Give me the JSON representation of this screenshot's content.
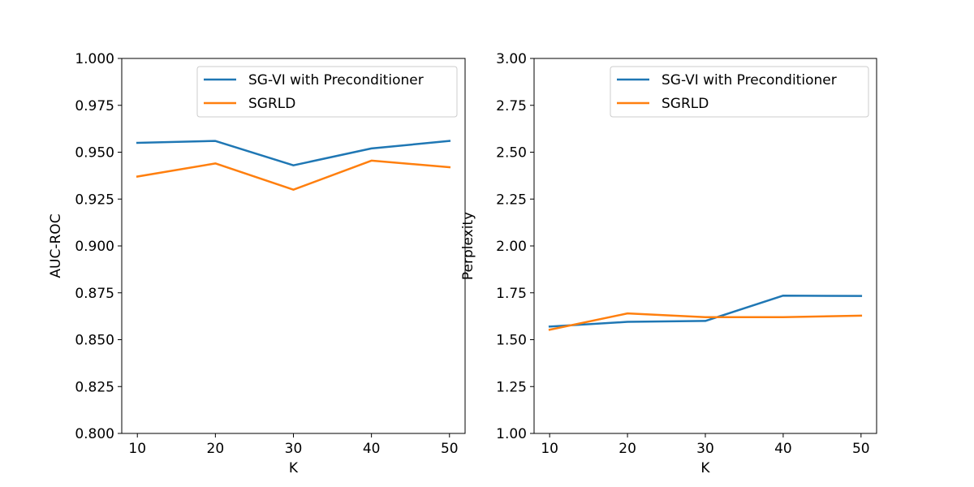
{
  "chart_data": [
    {
      "type": "line",
      "title": "",
      "xlabel": "K",
      "ylabel": "AUC-ROC",
      "x": [
        10,
        20,
        30,
        40,
        50
      ],
      "xticks": [
        "10",
        "20",
        "30",
        "40",
        "50"
      ],
      "xlim": [
        8,
        52
      ],
      "ylim": [
        0.8,
        1.0
      ],
      "yticks": [
        "0.800",
        "0.825",
        "0.850",
        "0.875",
        "0.900",
        "0.925",
        "0.950",
        "0.975",
        "1.000"
      ],
      "grid": false,
      "legend_position": "top-right",
      "series": [
        {
          "name": "SG-VI with Preconditioner",
          "color": "#1f77b4",
          "values": [
            0.955,
            0.956,
            0.943,
            0.952,
            0.956
          ]
        },
        {
          "name": "SGRLD",
          "color": "#ff7f0e",
          "values": [
            0.937,
            0.944,
            0.93,
            0.9455,
            0.942
          ]
        }
      ]
    },
    {
      "type": "line",
      "title": "",
      "xlabel": "K",
      "ylabel": "Perplexity",
      "x": [
        10,
        20,
        30,
        40,
        50
      ],
      "xticks": [
        "10",
        "20",
        "30",
        "40",
        "50"
      ],
      "xlim": [
        8,
        52
      ],
      "ylim": [
        1.0,
        3.0
      ],
      "yticks": [
        "1.00",
        "1.25",
        "1.50",
        "1.75",
        "2.00",
        "2.25",
        "2.50",
        "2.75",
        "3.00"
      ],
      "grid": false,
      "legend_position": "top-right",
      "series": [
        {
          "name": "SG-VI with Preconditioner",
          "color": "#1f77b4",
          "values": [
            1.57,
            1.595,
            1.6,
            1.735,
            1.733
          ]
        },
        {
          "name": "SGRLD",
          "color": "#ff7f0e",
          "values": [
            1.553,
            1.64,
            1.62,
            1.62,
            1.628
          ]
        }
      ]
    }
  ]
}
